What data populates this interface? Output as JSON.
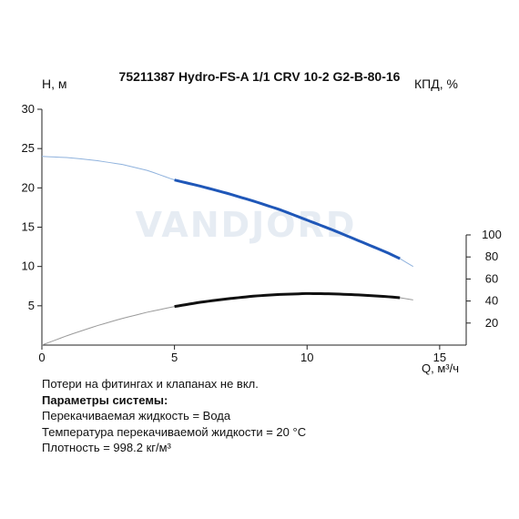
{
  "chart_data": {
    "type": "line",
    "title": "75211387 Hydro-FS-A 1/1 CRV 10-2 G2-B-80-16",
    "ylabel": "H, м",
    "y2label": "КПД, %",
    "xlabel": "Q, м³/ч",
    "xlim": [
      0,
      16
    ],
    "ylim": [
      0,
      30
    ],
    "y2lim": [
      0,
      100
    ],
    "xticks": [
      "0",
      "5",
      "10",
      "15"
    ],
    "yticks": [
      "5",
      "10",
      "15",
      "20",
      "25",
      "30"
    ],
    "y2ticks": [
      "20",
      "40",
      "60",
      "80",
      "100"
    ],
    "grid": false,
    "series": [
      {
        "axis": "left",
        "color": "#1f57b8",
        "thin_color": "#8fb2dd",
        "operating_range": [
          5,
          13.5
        ],
        "x": [
          0,
          1,
          2,
          3,
          4,
          5,
          6,
          7,
          8,
          9,
          10,
          11,
          12,
          13,
          13.5,
          14
        ],
        "y": [
          24,
          23.85,
          23.5,
          23.0,
          22.2,
          21.0,
          20.2,
          19.3,
          18.3,
          17.2,
          15.9,
          14.6,
          13.2,
          11.8,
          11.0,
          10.0
        ]
      },
      {
        "axis": "right",
        "color": "#111111",
        "thin_color": "#9a9a9a",
        "operating_range": [
          5,
          13.5
        ],
        "x": [
          0,
          1,
          2,
          3,
          4,
          5,
          6,
          7,
          8,
          9,
          10,
          11,
          12,
          13,
          13.5,
          14
        ],
        "y": [
          0,
          9,
          17,
          24,
          30,
          35,
          39,
          42,
          44.5,
          46,
          46.8,
          46.5,
          45.5,
          44,
          43,
          41
        ]
      }
    ]
  },
  "watermark": "VANDJORD",
  "notes": {
    "line1": "Потери на фитингах и клапанах не вкл.",
    "line2": "Параметры системы:",
    "line3": "Перекачиваемая жидкость = Вода",
    "line4": "Температура перекачиваемой жидкости = 20 °C",
    "line5": "Плотность = 998.2 кг/м³"
  }
}
